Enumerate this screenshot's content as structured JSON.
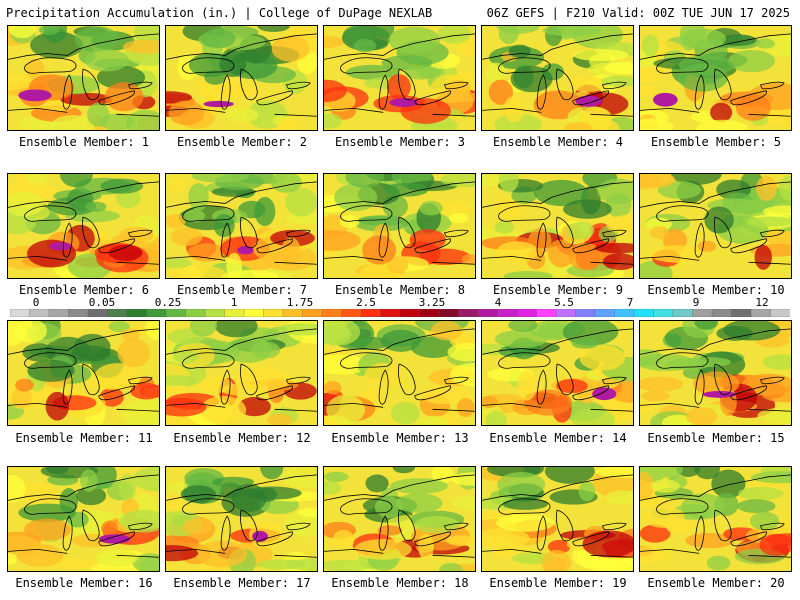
{
  "header": {
    "left_title": "Precipitation Accumulation (in.) | College of DuPage NEXLAB",
    "right_title": "06Z GEFS | F210 Valid: 00Z TUE JUN 17 2025"
  },
  "colorbar": {
    "tick_labels": [
      "0",
      "0.05",
      "0.25",
      "1",
      "1.75",
      "2.5",
      "3.25",
      "4",
      "5.5",
      "7",
      "9",
      "12"
    ],
    "colors": [
      "#d9d9d9",
      "#bfbfbf",
      "#a6a6a6",
      "#8c8c8c",
      "#6e6e6e",
      "#4f7f4f",
      "#2f7d2f",
      "#3f9a3a",
      "#66b844",
      "#8ccf46",
      "#b6e043",
      "#e8f03a",
      "#ffff3a",
      "#ffe030",
      "#ffc02a",
      "#ffa020",
      "#ff7f1a",
      "#ff5a14",
      "#ff2f10",
      "#e0100c",
      "#c0000a",
      "#9f0010",
      "#840a2a",
      "#9a1a6a",
      "#b01aa0",
      "#c820c8",
      "#e020e0",
      "#ff40ff",
      "#c070ff",
      "#8080ff",
      "#60a0ff",
      "#40c0ff",
      "#20e0ff",
      "#40e0e0",
      "#70c8c8",
      "#a0a0a0",
      "#8c8c8c",
      "#707070",
      "#a6a6a6",
      "#c8c8c8"
    ]
  },
  "members": [
    {
      "label": "Ensemble Member: 1"
    },
    {
      "label": "Ensemble Member: 2"
    },
    {
      "label": "Ensemble Member: 3"
    },
    {
      "label": "Ensemble Member: 4"
    },
    {
      "label": "Ensemble Member: 5"
    },
    {
      "label": "Ensemble Member: 6"
    },
    {
      "label": "Ensemble Member: 7"
    },
    {
      "label": "Ensemble Member: 8"
    },
    {
      "label": "Ensemble Member: 9"
    },
    {
      "label": "Ensemble Member: 10"
    },
    {
      "label": "Ensemble Member: 11"
    },
    {
      "label": "Ensemble Member: 12"
    },
    {
      "label": "Ensemble Member: 13"
    },
    {
      "label": "Ensemble Member: 14"
    },
    {
      "label": "Ensemble Member: 15"
    },
    {
      "label": "Ensemble Member: 16"
    },
    {
      "label": "Ensemble Member: 17"
    },
    {
      "label": "Ensemble Member: 18"
    },
    {
      "label": "Ensemble Member: 19"
    },
    {
      "label": "Ensemble Member: 20"
    }
  ]
}
